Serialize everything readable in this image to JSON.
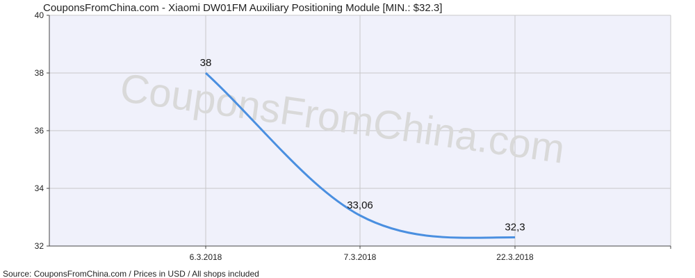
{
  "watermark": "CouponsFromChina.com",
  "chart_data": {
    "type": "line",
    "title": "CouponsFromChina.com - Xiaomi DW01FM Auxiliary Positioning Module [MIN.: $32.3]",
    "source": "Source:  CouponsFromChina.com / Prices in USD / All shops included",
    "x": [
      "6.3.2018",
      "7.3.2018",
      "22.3.2018"
    ],
    "series": [
      {
        "values": [
          38,
          33.06,
          32.3
        ],
        "labels": [
          "38",
          "33,06",
          "32,3"
        ],
        "color": "#4a8fe0"
      }
    ],
    "ylim": [
      32,
      40
    ],
    "yticks": [
      32,
      34,
      36,
      38,
      40
    ],
    "grid": true,
    "plot_bg": "#f0f1fb",
    "grid_color": "#c8c8c8"
  }
}
